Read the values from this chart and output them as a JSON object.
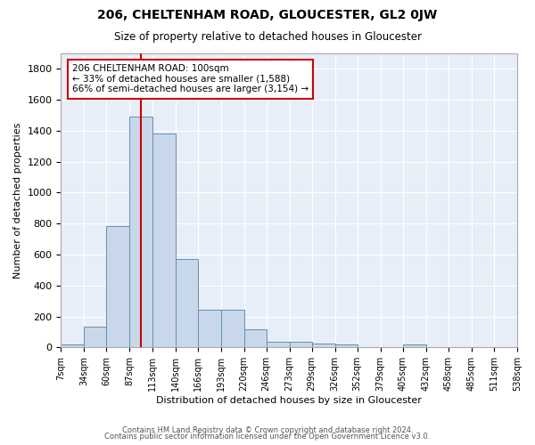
{
  "title": "206, CHELTENHAM ROAD, GLOUCESTER, GL2 0JW",
  "subtitle": "Size of property relative to detached houses in Gloucester",
  "xlabel": "Distribution of detached houses by size in Gloucester",
  "ylabel": "Number of detached properties",
  "bin_edges": [
    7,
    34,
    60,
    87,
    113,
    140,
    166,
    193,
    220,
    246,
    273,
    299,
    326,
    352,
    379,
    405,
    432,
    458,
    485,
    511,
    538
  ],
  "bar_heights": [
    20,
    135,
    785,
    1490,
    1385,
    570,
    245,
    245,
    115,
    35,
    35,
    25,
    20,
    0,
    0,
    20,
    0,
    0,
    0,
    0
  ],
  "bar_color": "#c8d8ea",
  "bar_edge_color": "#6090b0",
  "background_color": "#e8eef8",
  "grid_color": "#ffffff",
  "vline_x": 100,
  "vline_color": "#cc0000",
  "annotation_text": "206 CHELTENHAM ROAD: 100sqm\n← 33% of detached houses are smaller (1,588)\n66% of semi-detached houses are larger (3,154) →",
  "annotation_box_color": "#ffffff",
  "annotation_box_edge": "#cc0000",
  "ylim": [
    0,
    1900
  ],
  "yticks": [
    0,
    200,
    400,
    600,
    800,
    1000,
    1200,
    1400,
    1600,
    1800
  ],
  "tick_labels": [
    "7sqm",
    "34sqm",
    "60sqm",
    "87sqm",
    "113sqm",
    "140sqm",
    "166sqm",
    "193sqm",
    "220sqm",
    "246sqm",
    "273sqm",
    "299sqm",
    "326sqm",
    "352sqm",
    "379sqm",
    "405sqm",
    "432sqm",
    "458sqm",
    "485sqm",
    "511sqm",
    "538sqm"
  ],
  "footnote1": "Contains HM Land Registry data © Crown copyright and database right 2024.",
  "footnote2": "Contains public sector information licensed under the Open Government Licence v3.0."
}
